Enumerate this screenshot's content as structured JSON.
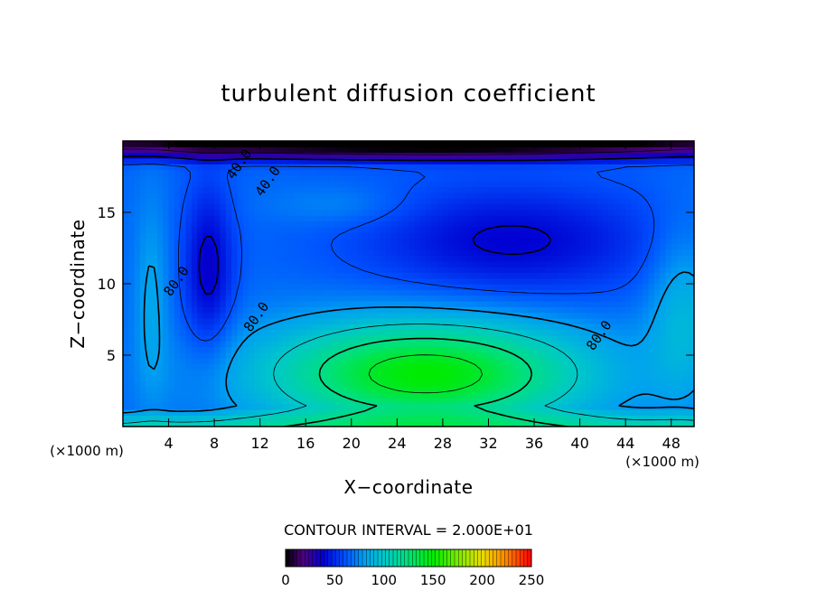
{
  "chart_data": {
    "type": "heatmap",
    "title": "turbulent diffusion coefficient",
    "xlabel": "X−coordinate",
    "ylabel": "Z−coordinate",
    "x_unit_left": "(×1000 m)",
    "x_unit_right": "(×1000 m)",
    "xlim": [
      0,
      50
    ],
    "ylim": [
      0,
      20
    ],
    "xticks": [
      "4",
      "8",
      "12",
      "16",
      "20",
      "24",
      "28",
      "32",
      "36",
      "40",
      "44",
      "48"
    ],
    "xtick_values": [
      4,
      8,
      12,
      16,
      20,
      24,
      28,
      32,
      36,
      40,
      44,
      48
    ],
    "yticks": [
      "5",
      "10",
      "15"
    ],
    "ytick_values": [
      5,
      10,
      15
    ],
    "contour_interval_text": "CONTOUR INTERVAL = 2.000E+01",
    "contour_interval": 20,
    "contour_labels": [
      {
        "text": "40.0",
        "x": 10.5,
        "y": 18.2
      },
      {
        "text": "40.0",
        "x": 13.0,
        "y": 17.0
      },
      {
        "text": "80.0",
        "x": 5.0,
        "y": 10.0
      },
      {
        "text": "80.0",
        "x": 12.0,
        "y": 7.5
      },
      {
        "text": "80.0",
        "x": 42.0,
        "y": 6.2
      }
    ],
    "field_features": {
      "core_max": {
        "x": 26.5,
        "z": 3.6,
        "value": 150
      },
      "upper_layer_min_value": 0,
      "typical_range": [
        0,
        160
      ]
    },
    "colorbar": {
      "min": 0,
      "max": 250,
      "ticks": [
        "0",
        "50",
        "100",
        "150",
        "200",
        "250"
      ],
      "tick_values": [
        0,
        50,
        100,
        150,
        200,
        250
      ]
    }
  }
}
